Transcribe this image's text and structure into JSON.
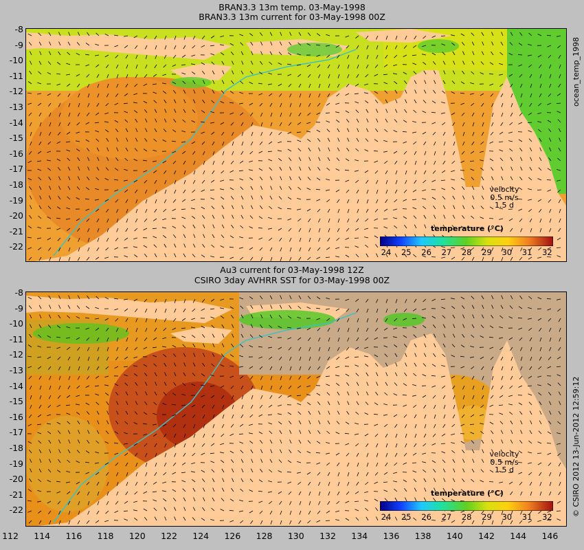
{
  "top_panel": {
    "title_line1": "BRAN3.3 13m temp. 03-May-1998",
    "title_line2": "BRAN3.3 13m current for 03-May-1998 00Z",
    "velocity_label": "velocity",
    "velocity_speed": "0.5 m/s",
    "velocity_time": "1.5 d",
    "legend_title": "temperature (°C)"
  },
  "bottom_panel": {
    "title_line1": "Au3 current for 03-May-1998 12Z",
    "title_line2": "CSIRO 3day AVHRR SST for 03-May-1998 00Z",
    "velocity_label": "velocity",
    "velocity_speed": "0.5 m/s",
    "velocity_time": "1.5 d",
    "legend_title": "temperature (°C)"
  },
  "y_ticks": [
    "-8",
    "-9",
    "-10",
    "-11",
    "-12",
    "-13",
    "-14",
    "-15",
    "-16",
    "-17",
    "-18",
    "-19",
    "-20",
    "-21",
    "-22"
  ],
  "x_ticks": [
    "112",
    "114",
    "116",
    "118",
    "120",
    "122",
    "124",
    "126",
    "128",
    "130",
    "132",
    "134",
    "136",
    "138",
    "140",
    "142",
    "144",
    "146"
  ],
  "colorbar_ticks": [
    "24",
    "25",
    "26",
    "27",
    "28",
    "29",
    "30",
    "31",
    "32"
  ],
  "side_label_top": "ocean_temp_1998",
  "side_label_bottom": "© CSIRO 2012  13-Jun-2012 12:59:12",
  "colors": {
    "land": "#ffcc99",
    "cloud": "#c9aa88",
    "warm": "#e8901a",
    "cool": "#50c820",
    "background": "#c0c0c0"
  }
}
